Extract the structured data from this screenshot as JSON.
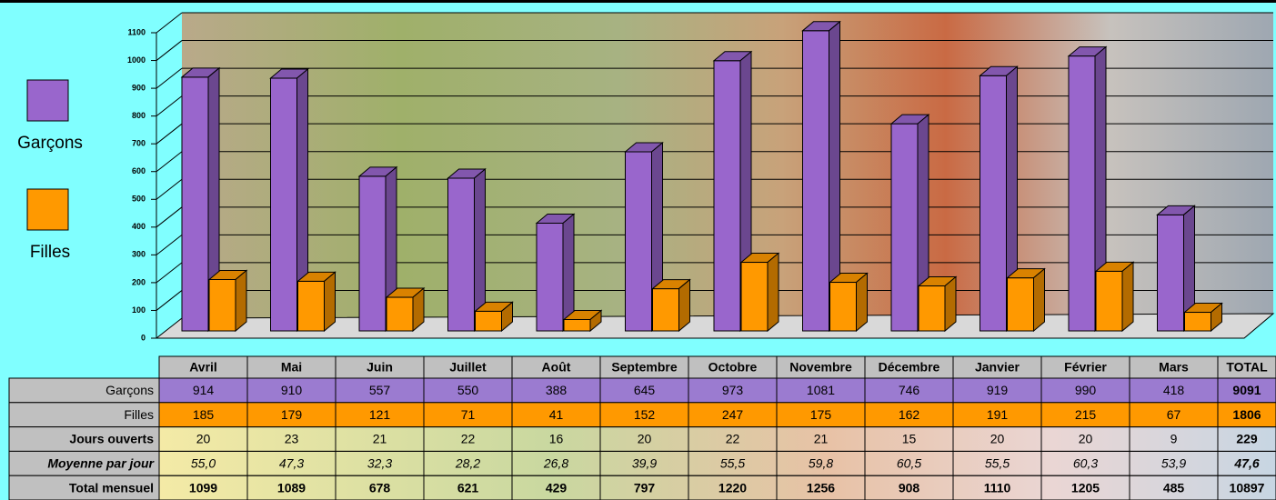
{
  "chart_data": {
    "type": "bar3d",
    "categories": [
      "Avril",
      "Mai",
      "Juin",
      "Juillet",
      "Août",
      "Septembre",
      "Octobre",
      "Novembre",
      "Décembre",
      "Janvier",
      "Février",
      "Mars"
    ],
    "series": [
      {
        "name": "Garçons",
        "color": "#9966cc",
        "values": [
          914,
          910,
          557,
          550,
          388,
          645,
          973,
          1081,
          746,
          919,
          990,
          418
        ]
      },
      {
        "name": "Filles",
        "color": "#ff9900",
        "values": [
          185,
          179,
          121,
          71,
          41,
          152,
          247,
          175,
          162,
          191,
          215,
          67
        ]
      }
    ],
    "ylim": [
      0,
      1100
    ],
    "yticks": [
      0,
      100,
      200,
      300,
      400,
      500,
      600,
      700,
      800,
      900,
      1000,
      1100
    ],
    "grid": true
  },
  "table": {
    "total_header": "TOTAL",
    "series_totals": [
      9091,
      1806
    ],
    "rows": [
      {
        "label": "Jours ouverts",
        "values": [
          20,
          23,
          21,
          22,
          16,
          20,
          22,
          21,
          15,
          20,
          20,
          9
        ],
        "total": 229
      },
      {
        "label": "Moyenne par jour",
        "values": [
          "55,0",
          "47,3",
          "32,3",
          "28,2",
          "26,8",
          "39,9",
          "55,5",
          "59,8",
          "60,5",
          "55,5",
          "60,3",
          "53,9"
        ],
        "total": "47,6"
      },
      {
        "label": "Total mensuel",
        "values": [
          1099,
          1089,
          678,
          621,
          429,
          797,
          1220,
          1256,
          908,
          1110,
          1205,
          485
        ],
        "total": 10897
      }
    ]
  }
}
